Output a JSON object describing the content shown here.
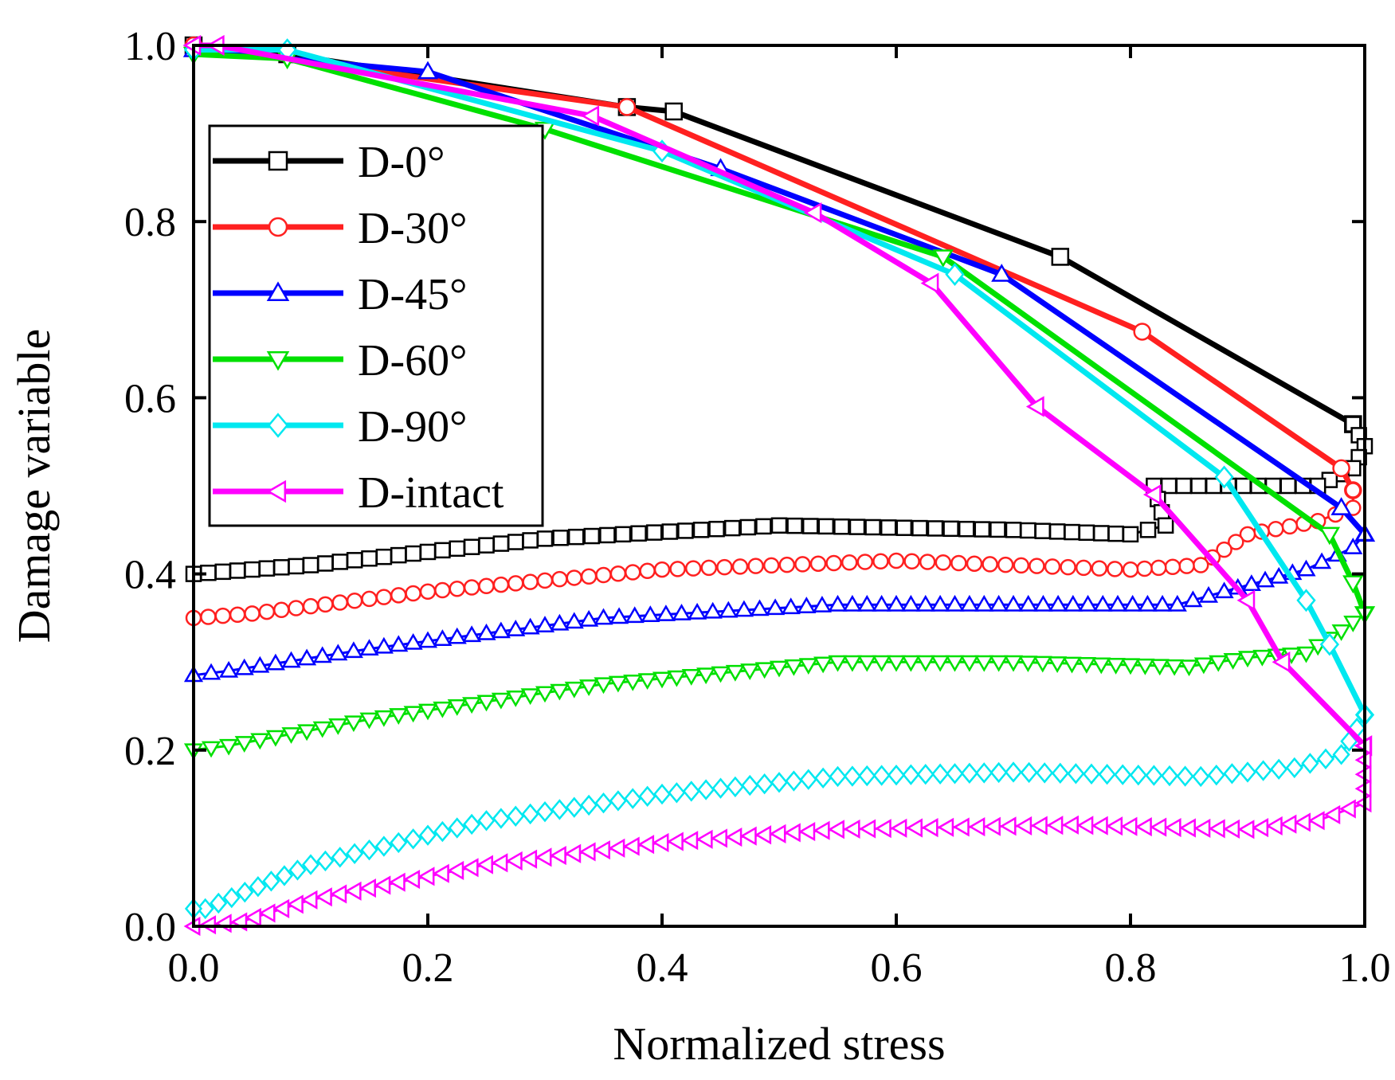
{
  "chart_data": {
    "type": "line",
    "title": "",
    "xlabel": "Normalized stress",
    "ylabel": "Damage variable",
    "xlim": [
      0.0,
      1.0
    ],
    "ylim": [
      0.0,
      1.0
    ],
    "xticks": [
      "0.0",
      "0.2",
      "0.4",
      "0.6",
      "0.8",
      "1.0"
    ],
    "yticks": [
      "0.0",
      "0.2",
      "0.4",
      "0.6",
      "0.8",
      "1.0"
    ],
    "grid": false,
    "legend_position": "upper-left",
    "series": [
      {
        "name": "D-0°",
        "color": "#000000",
        "marker": "square",
        "loading": [
          [
            0.0,
            1.0
          ],
          [
            0.08,
            0.99
          ],
          [
            0.37,
            0.93
          ],
          [
            0.41,
            0.925
          ],
          [
            0.74,
            0.76
          ],
          [
            0.99,
            0.57
          ]
        ],
        "unloading": [
          [
            0.99,
            0.57
          ],
          [
            1.0,
            0.545
          ],
          [
            0.99,
            0.52
          ],
          [
            0.96,
            0.5
          ],
          [
            0.82,
            0.5
          ],
          [
            0.83,
            0.455
          ],
          [
            0.8,
            0.445
          ],
          [
            0.7,
            0.45
          ],
          [
            0.5,
            0.455
          ],
          [
            0.3,
            0.44
          ],
          [
            0.1,
            0.41
          ],
          [
            0.0,
            0.4
          ]
        ]
      },
      {
        "name": "D-30°",
        "color": "#ff2020",
        "marker": "circle",
        "loading": [
          [
            0.0,
            1.0
          ],
          [
            0.37,
            0.93
          ],
          [
            0.81,
            0.675
          ],
          [
            0.98,
            0.52
          ],
          [
            0.99,
            0.495
          ]
        ],
        "unloading": [
          [
            0.99,
            0.495
          ],
          [
            0.99,
            0.475
          ],
          [
            0.96,
            0.46
          ],
          [
            0.9,
            0.445
          ],
          [
            0.86,
            0.41
          ],
          [
            0.8,
            0.405
          ],
          [
            0.6,
            0.415
          ],
          [
            0.4,
            0.405
          ],
          [
            0.2,
            0.38
          ],
          [
            0.05,
            0.355
          ],
          [
            0.0,
            0.35
          ]
        ]
      },
      {
        "name": "D-45°",
        "color": "#0000ff",
        "marker": "triangle-up",
        "loading": [
          [
            0.0,
            0.995
          ],
          [
            0.2,
            0.97
          ],
          [
            0.45,
            0.86
          ],
          [
            0.69,
            0.74
          ],
          [
            0.98,
            0.475
          ],
          [
            1.0,
            0.445
          ]
        ],
        "unloading": [
          [
            1.0,
            0.445
          ],
          [
            0.99,
            0.43
          ],
          [
            0.95,
            0.405
          ],
          [
            0.88,
            0.38
          ],
          [
            0.84,
            0.365
          ],
          [
            0.7,
            0.365
          ],
          [
            0.55,
            0.365
          ],
          [
            0.35,
            0.35
          ],
          [
            0.15,
            0.315
          ],
          [
            0.03,
            0.29
          ],
          [
            0.0,
            0.285
          ]
        ]
      },
      {
        "name": "D-60°",
        "color": "#00e000",
        "marker": "triangle-down",
        "loading": [
          [
            0.0,
            0.99
          ],
          [
            0.08,
            0.985
          ],
          [
            0.3,
            0.905
          ],
          [
            0.64,
            0.76
          ],
          [
            0.97,
            0.445
          ],
          [
            0.99,
            0.39
          ],
          [
            1.0,
            0.355
          ]
        ],
        "unloading": [
          [
            1.0,
            0.355
          ],
          [
            0.98,
            0.335
          ],
          [
            0.95,
            0.31
          ],
          [
            0.9,
            0.305
          ],
          [
            0.85,
            0.295
          ],
          [
            0.7,
            0.3
          ],
          [
            0.55,
            0.3
          ],
          [
            0.35,
            0.275
          ],
          [
            0.15,
            0.235
          ],
          [
            0.03,
            0.205
          ],
          [
            0.0,
            0.2
          ]
        ]
      },
      {
        "name": "D-90°",
        "color": "#00e8f0",
        "marker": "diamond",
        "loading": [
          [
            0.0,
            0.995
          ],
          [
            0.08,
            0.995
          ],
          [
            0.4,
            0.88
          ],
          [
            0.65,
            0.74
          ],
          [
            0.88,
            0.51
          ],
          [
            0.95,
            0.37
          ],
          [
            0.97,
            0.32
          ],
          [
            1.0,
            0.24
          ]
        ],
        "unloading": [
          [
            1.0,
            0.24
          ],
          [
            0.98,
            0.195
          ],
          [
            0.94,
            0.18
          ],
          [
            0.86,
            0.17
          ],
          [
            0.7,
            0.175
          ],
          [
            0.55,
            0.17
          ],
          [
            0.4,
            0.15
          ],
          [
            0.25,
            0.12
          ],
          [
            0.1,
            0.07
          ],
          [
            0.01,
            0.02
          ],
          [
            0.0,
            0.02
          ]
        ]
      },
      {
        "name": "D-intact",
        "color": "#ff00ff",
        "marker": "triangle-left",
        "loading": [
          [
            0.0,
            1.0
          ],
          [
            0.02,
            1.0
          ],
          [
            0.34,
            0.92
          ],
          [
            0.53,
            0.81
          ],
          [
            0.63,
            0.73
          ],
          [
            0.72,
            0.59
          ],
          [
            0.82,
            0.49
          ],
          [
            0.9,
            0.37
          ],
          [
            0.93,
            0.3
          ],
          [
            1.0,
            0.205
          ]
        ],
        "unloading": [
          [
            1.0,
            0.205
          ],
          [
            1.0,
            0.14
          ],
          [
            0.96,
            0.12
          ],
          [
            0.9,
            0.11
          ],
          [
            0.75,
            0.115
          ],
          [
            0.55,
            0.11
          ],
          [
            0.4,
            0.095
          ],
          [
            0.25,
            0.07
          ],
          [
            0.1,
            0.03
          ],
          [
            0.04,
            0.005
          ],
          [
            0.0,
            0.0
          ]
        ]
      }
    ]
  }
}
